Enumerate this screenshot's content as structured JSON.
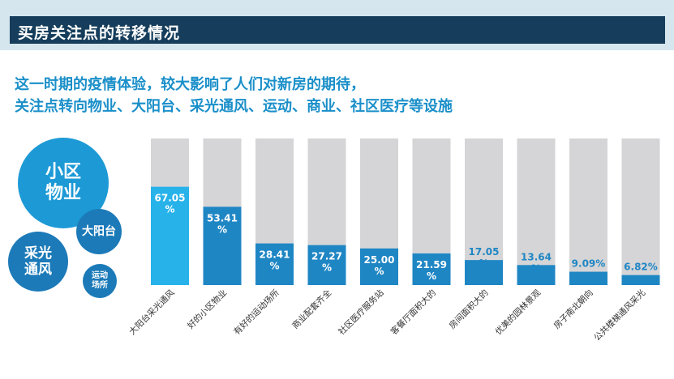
{
  "title": "买房关注点的转移情况",
  "subtitle_lines": [
    "这一时期的疫情体验，较大影响了人们对新房的期待，",
    "关注点转向物业、大阳台、采光通风、运动、商业、社区医疗等设施"
  ],
  "bubbles": [
    {
      "label": "小区\n物业",
      "color": "#1d9ad6"
    },
    {
      "label": "大阳台",
      "color": "#1c7ab8"
    },
    {
      "label": "采光\n通风",
      "color": "#1c7ab8"
    },
    {
      "label": "运动\n场所",
      "color": "#1c7ab8"
    }
  ],
  "colors": {
    "title_bg": "#163e5c",
    "header_band": "#d6e6ee",
    "subtitle": "#1a8fc9",
    "bar_track": "#d5d5d7",
    "bar_highlight": "#27b2ea",
    "bar_fill": "#1f86c4"
  },
  "chart_data": {
    "type": "bar",
    "categories": [
      "大阳台采光通风",
      "好的小区物业",
      "有好的运动场所",
      "商业配套齐全",
      "社区医疗服务站",
      "客餐厅面积大的",
      "房间面积大的",
      "优美的园林景观",
      "房子南北朝向",
      "公共楼梯通风采光"
    ],
    "values": [
      67.05,
      53.41,
      28.41,
      27.27,
      25.0,
      21.59,
      17.05,
      13.64,
      9.09,
      6.82
    ],
    "value_labels": [
      "67.05\n%",
      "53.41\n%",
      "28.41\n%",
      "27.27\n%",
      "25.00\n%",
      "21.59\n%",
      "17.05\n%",
      "13.64\n%",
      "9.09%",
      "6.82%"
    ],
    "ylim": [
      0,
      100
    ],
    "unit": "%",
    "highlight_index": 0
  }
}
